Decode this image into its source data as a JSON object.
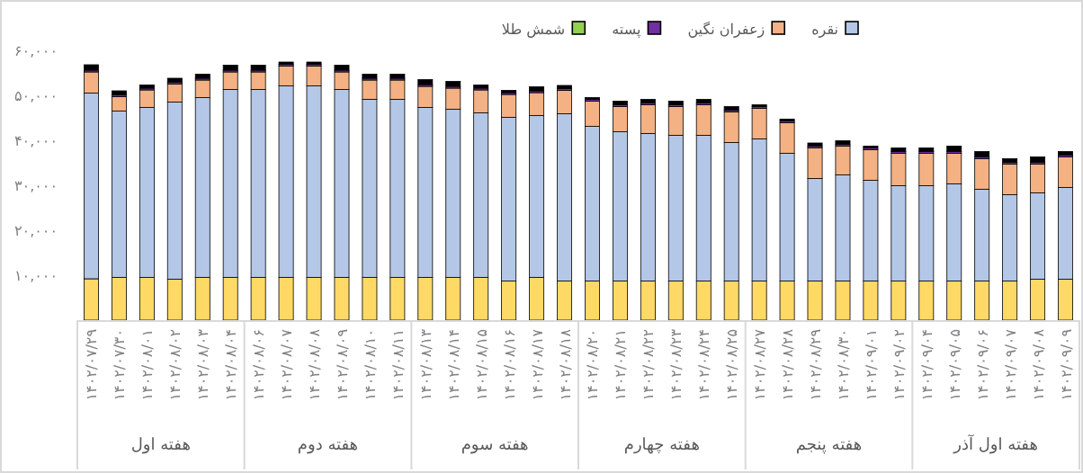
{
  "chart_data": {
    "type": "bar",
    "stacked": true,
    "legend": "top",
    "categories": [
      "۱۴۰۲/۰۷/۲۹",
      "۱۴۰۲/۰۷/۳۰",
      "۱۴۰۲/۰۸/۰۱",
      "۱۴۰۲/۰۸/۰۲",
      "۱۴۰۲/۰۸/۰۳",
      "۱۴۰۲/۰۸/۰۴",
      "۱۴۰۲/۰۸/۰۶",
      "۱۴۰۲/۰۸/۰۷",
      "۱۴۰۲/۰۸/۰۸",
      "۱۴۰۲/۰۸/۰۹",
      "۱۴۰۲/۰۸/۱۰",
      "۱۴۰۲/۰۸/۱۱",
      "۱۴۰۲/۰۸/۱۳",
      "۱۴۰۲/۰۸/۱۴",
      "۱۴۰۲/۰۸/۱۵",
      "۱۴۰۲/۰۸/۱۶",
      "۱۴۰۲/۰۸/۱۷",
      "۱۴۰۲/۰۸/۱۸",
      "۱۴۰۲/۰۸/۲۰",
      "۱۴۰۲/۰۸/۲۱",
      "۱۴۰۲/۰۸/۲۲",
      "۱۴۰۲/۰۸/۲۳",
      "۱۴۰۲/۰۸/۲۴",
      "۱۴۰۲/۰۸/۲۵",
      "۱۴۰۲/۰۸/۲۷",
      "۱۴۰۲/۰۸/۲۸",
      "۱۴۰۲/۰۸/۲۹",
      "۱۴۰۲/۰۸/۳۰",
      "۱۴۰۲/۰۹/۰۱",
      "۱۴۰۲/۰۹/۰۲",
      "۱۴۰۲/۰۹/۰۴",
      "۱۴۰۲/۰۹/۰۵",
      "۱۴۰۲/۰۹/۰۶",
      "۱۴۰۲/۰۹/۰۷",
      "۱۴۰۲/۰۹/۰۸",
      "۱۴۰۲/۰۹/۰۹"
    ],
    "series": [
      {
        "color": "#ffd966",
        "values": [
          9200,
          9500,
          9500,
          9100,
          9500,
          9500,
          9500,
          9500,
          9500,
          9500,
          9500,
          9500,
          9500,
          9500,
          9500,
          8700,
          9500,
          8700,
          8700,
          8700,
          8700,
          8700,
          8700,
          8700,
          8700,
          8700,
          8700,
          8700,
          8700,
          8700,
          8700,
          8700,
          8700,
          8700,
          9100,
          9100
        ]
      },
      {
        "name": "نقره",
        "color": "#b4c7e7",
        "values": [
          41300,
          37000,
          37800,
          39400,
          40000,
          41800,
          41800,
          42600,
          42600,
          41800,
          39600,
          39600,
          37800,
          37400,
          36600,
          36400,
          36000,
          37200,
          34400,
          33200,
          32800,
          32400,
          32400,
          30800,
          31600,
          28400,
          22800,
          23600,
          22400,
          21200,
          21200,
          21600,
          20400,
          19200,
          19200,
          20400
        ]
      },
      {
        "name": "زعفران نگین",
        "color": "#f4b183",
        "values": [
          4700,
          3200,
          3900,
          4000,
          3900,
          3900,
          3900,
          4400,
          4400,
          3900,
          4300,
          4300,
          4700,
          4700,
          5100,
          5100,
          5100,
          5200,
          5600,
          5600,
          6400,
          6400,
          6800,
          6800,
          6800,
          6800,
          6800,
          6400,
          6800,
          7200,
          7200,
          6800,
          6800,
          6800,
          6400,
          6800
        ]
      },
      {
        "name": "پسته",
        "color": "#7030a0",
        "values": [
          400,
          400,
          400,
          400,
          400,
          400,
          400,
          400,
          400,
          400,
          400,
          400,
          400,
          400,
          400,
          400,
          400,
          400,
          400,
          400,
          400,
          400,
          400,
          400,
          400,
          400,
          400,
          400,
          400,
          400,
          400,
          400,
          400,
          400,
          400,
          400
        ]
      },
      {
        "name": "شمش طلا",
        "color": "#92d050",
        "values": [
          0,
          0,
          0,
          0,
          0,
          0,
          0,
          0,
          0,
          0,
          0,
          0,
          0,
          0,
          0,
          0,
          0,
          0,
          0,
          0,
          0,
          0,
          0,
          0,
          0,
          0,
          0,
          0,
          0,
          0,
          0,
          0,
          0,
          0,
          0,
          0
        ]
      },
      {
        "color": "#000000",
        "values": [
          1200,
          900,
          700,
          900,
          900,
          1100,
          1100,
          500,
          500,
          1100,
          900,
          900,
          1100,
          1100,
          700,
          500,
          900,
          700,
          400,
          800,
          800,
          800,
          800,
          800,
          400,
          400,
          700,
          800,
          400,
          800,
          800,
          1200,
          1200,
          800,
          1200,
          800
        ]
      }
    ],
    "ylim": [
      0,
      60000
    ],
    "yticks": [
      {
        "value": 10000,
        "label": "۱۰,۰۰۰"
      },
      {
        "value": 20000,
        "label": "۲۰,۰۰۰"
      },
      {
        "value": 30000,
        "label": "۳۰,۰۰۰"
      },
      {
        "value": 40000,
        "label": "۴۰,۰۰۰"
      },
      {
        "value": 50000,
        "label": "۵۰,۰۰۰"
      },
      {
        "value": 60000,
        "label": "۶۰,۰۰۰"
      }
    ],
    "annotations": [
      "هفته اول",
      "هفته دوم",
      "هفته سوم",
      "هفته چهارم",
      "هفته پنجم",
      "هفته اول آذر"
    ]
  }
}
